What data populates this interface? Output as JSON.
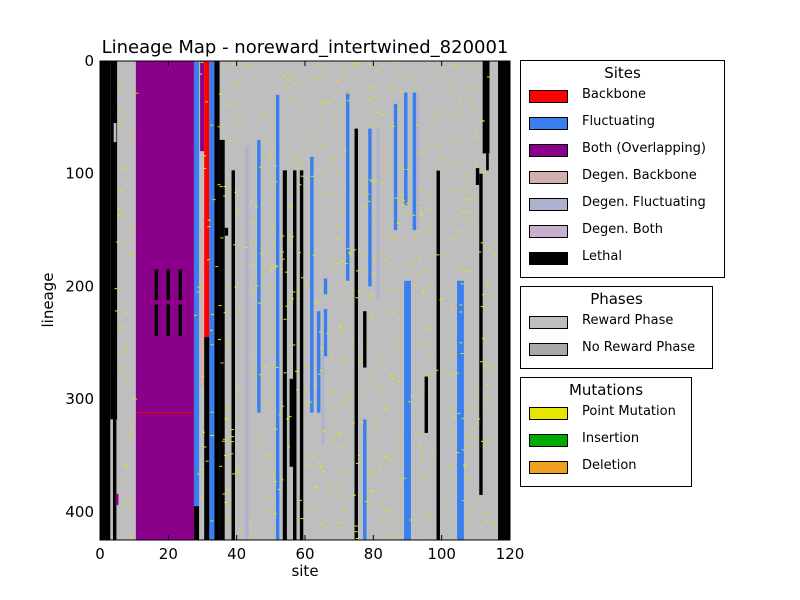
{
  "chart_data": {
    "type": "heatmap",
    "title": "Lineage Map - noreward_intertwined_820001",
    "xlabel": "site",
    "ylabel": "lineage",
    "xlim": [
      0,
      120
    ],
    "ylim": [
      0,
      425
    ],
    "y_inverted": true,
    "x_ticks": [
      0,
      20,
      40,
      60,
      80,
      100,
      120
    ],
    "y_ticks": [
      0,
      100,
      200,
      300,
      400
    ],
    "background_phase": "Reward Phase",
    "columns": [
      {
        "site": 0,
        "width": 3,
        "y": [
          0,
          425
        ],
        "category": "Lethal"
      },
      {
        "site": 3,
        "width": 2,
        "y": [
          0,
          318
        ],
        "category": "Lethal"
      },
      {
        "site": 1.8,
        "width": 0.8,
        "y": [
          320,
          425
        ],
        "category": "Lethal"
      },
      {
        "site": 3.8,
        "width": 1,
        "y": [
          318,
          425
        ],
        "category": "Lethal"
      },
      {
        "site": 4,
        "width": 0.8,
        "y": [
          55,
          72
        ],
        "category": "Reward Phase"
      },
      {
        "site": 4.6,
        "width": 0.8,
        "y": [
          384,
          394
        ],
        "category": "Both (Overlapping)"
      },
      {
        "site": 10.5,
        "width": 17,
        "y": [
          0,
          425
        ],
        "category": "Both (Overlapping)"
      },
      {
        "site": 16,
        "width": 1,
        "y": [
          185,
          212
        ],
        "category": "Lethal"
      },
      {
        "site": 16,
        "width": 1,
        "y": [
          216,
          244
        ],
        "category": "Lethal"
      },
      {
        "site": 19.5,
        "width": 1,
        "y": [
          185,
          212
        ],
        "category": "Lethal"
      },
      {
        "site": 19.5,
        "width": 1,
        "y": [
          216,
          244
        ],
        "category": "Lethal"
      },
      {
        "site": 23,
        "width": 1,
        "y": [
          185,
          212
        ],
        "category": "Lethal"
      },
      {
        "site": 23,
        "width": 1,
        "y": [
          216,
          244
        ],
        "category": "Lethal"
      },
      {
        "site": 27.5,
        "width": 1.5,
        "y": [
          0,
          395
        ],
        "category": "Fluctuating"
      },
      {
        "site": 27.5,
        "width": 1.5,
        "y": [
          395,
          425
        ],
        "category": "Lethal"
      },
      {
        "site": 29.3,
        "width": 1.2,
        "y": [
          0,
          80
        ],
        "category": "Both (Overlapping)"
      },
      {
        "site": 29.3,
        "width": 1.2,
        "y": [
          150,
          290
        ],
        "category": "Degen. Backbone"
      },
      {
        "site": 30.5,
        "width": 1.5,
        "y": [
          0,
          245
        ],
        "category": "Backbone"
      },
      {
        "site": 30.5,
        "width": 1.5,
        "y": [
          245,
          425
        ],
        "category": "Lethal"
      },
      {
        "site": 32,
        "width": 1.5,
        "y": [
          0,
          425
        ],
        "category": "Fluctuating"
      },
      {
        "site": 33.5,
        "width": 1.5,
        "y": [
          0,
          425
        ],
        "category": "Lethal"
      },
      {
        "site": 35,
        "width": 1.5,
        "y": [
          70,
          425
        ],
        "category": "Lethal"
      },
      {
        "site": 36.5,
        "width": 1,
        "y": [
          148,
          155
        ],
        "category": "Lethal"
      },
      {
        "site": 38.5,
        "width": 1,
        "y": [
          97,
          425
        ],
        "category": "Lethal"
      },
      {
        "site": 42.5,
        "width": 1,
        "y": [
          75,
          425
        ],
        "category": "Degen. Fluctuating"
      },
      {
        "site": 46,
        "width": 1,
        "y": [
          70,
          312
        ],
        "category": "Fluctuating"
      },
      {
        "site": 51.5,
        "width": 1,
        "y": [
          30,
          70
        ],
        "category": "Fluctuating"
      },
      {
        "site": 51.5,
        "width": 1,
        "y": [
          70,
          425
        ],
        "category": "Fluctuating"
      },
      {
        "site": 53.5,
        "width": 1.2,
        "y": [
          97,
          425
        ],
        "category": "Lethal"
      },
      {
        "site": 55.5,
        "width": 1.5,
        "y": [
          282,
          360
        ],
        "category": "Lethal"
      },
      {
        "site": 56.5,
        "width": 1,
        "y": [
          97,
          425
        ],
        "category": "Lethal"
      },
      {
        "site": 58.5,
        "width": 1,
        "y": [
          97,
          425
        ],
        "category": "Lethal"
      },
      {
        "site": 61.5,
        "width": 1,
        "y": [
          85,
          312
        ],
        "category": "Fluctuating"
      },
      {
        "site": 63.5,
        "width": 1,
        "y": [
          222,
          312
        ],
        "category": "Fluctuating"
      },
      {
        "site": 64.8,
        "width": 0.8,
        "y": [
          262,
          340
        ],
        "category": "Degen. Fluctuating"
      },
      {
        "site": 65.5,
        "width": 1,
        "y": [
          193,
          207
        ],
        "category": "Fluctuating"
      },
      {
        "site": 65.5,
        "width": 1,
        "y": [
          220,
          262
        ],
        "category": "Fluctuating"
      },
      {
        "site": 72,
        "width": 1,
        "y": [
          28,
          195
        ],
        "category": "Fluctuating"
      },
      {
        "site": 74.5,
        "width": 1,
        "y": [
          60,
          425
        ],
        "category": "Lethal"
      },
      {
        "site": 77,
        "width": 1,
        "y": [
          222,
          272
        ],
        "category": "Lethal"
      },
      {
        "site": 77,
        "width": 1,
        "y": [
          318,
          425
        ],
        "category": "Fluctuating"
      },
      {
        "site": 78.5,
        "width": 1,
        "y": [
          60,
          200
        ],
        "category": "Fluctuating"
      },
      {
        "site": 81,
        "width": 0.8,
        "y": [
          60,
          212
        ],
        "category": "Degen. Fluctuating"
      },
      {
        "site": 86,
        "width": 1,
        "y": [
          38,
          150
        ],
        "category": "Fluctuating"
      },
      {
        "site": 89,
        "width": 2,
        "y": [
          195,
          425
        ],
        "category": "Fluctuating"
      },
      {
        "site": 89,
        "width": 1,
        "y": [
          28,
          128
        ],
        "category": "Fluctuating"
      },
      {
        "site": 91.5,
        "width": 1,
        "y": [
          28,
          150
        ],
        "category": "Fluctuating"
      },
      {
        "site": 92.5,
        "width": 0.8,
        "y": [
          28,
          150
        ],
        "category": "Degen. Fluctuating"
      },
      {
        "site": 95,
        "width": 1,
        "y": [
          280,
          330
        ],
        "category": "Lethal"
      },
      {
        "site": 98.5,
        "width": 1,
        "y": [
          97,
          425
        ],
        "category": "Lethal"
      },
      {
        "site": 104.5,
        "width": 2,
        "y": [
          195,
          425
        ],
        "category": "Fluctuating"
      },
      {
        "site": 110,
        "width": 1,
        "y": [
          95,
          110
        ],
        "category": "Lethal"
      },
      {
        "site": 111,
        "width": 1,
        "y": [
          100,
          385
        ],
        "category": "Lethal"
      },
      {
        "site": 112,
        "width": 2,
        "y": [
          0,
          82
        ],
        "category": "Lethal"
      },
      {
        "site": 113,
        "width": 0.8,
        "y": [
          82,
          97
        ],
        "category": "Lethal"
      },
      {
        "site": 116.5,
        "width": 3.5,
        "y": [
          0,
          425
        ],
        "category": "Lethal"
      }
    ],
    "row_lines": [
      {
        "y": 312,
        "x": [
          10.5,
          27.5
        ],
        "category": "Backbone"
      }
    ],
    "mutation_marks": {
      "category": "Point Mutation",
      "count": 520,
      "x_range": [
        4,
        116
      ],
      "y_range": [
        0,
        425
      ],
      "skip_x": [
        [
          10.5,
          27.5
        ]
      ]
    },
    "legends": [
      {
        "title": "Sites",
        "entries": [
          {
            "label": "Backbone",
            "color": "#ff0000"
          },
          {
            "label": "Fluctuating",
            "color": "#3a7fef"
          },
          {
            "label": "Both (Overlapping)",
            "color": "#8b008b"
          },
          {
            "label": "Degen. Backbone",
            "color": "#d1b0ae"
          },
          {
            "label": "Degen. Fluctuating",
            "color": "#adb2cf"
          },
          {
            "label": "Degen. Both",
            "color": "#c8afd0"
          },
          {
            "label": "Lethal",
            "color": "#000000"
          }
        ]
      },
      {
        "title": "Phases",
        "entries": [
          {
            "label": "Reward Phase",
            "color": "#bebebe"
          },
          {
            "label": "No Reward Phase",
            "color": "#a9a9a9"
          }
        ]
      },
      {
        "title": "Mutations",
        "entries": [
          {
            "label": "Point Mutation",
            "color": "#e6e600"
          },
          {
            "label": "Insertion",
            "color": "#00aa00"
          },
          {
            "label": "Deletion",
            "color": "#f0a020"
          }
        ]
      }
    ]
  }
}
